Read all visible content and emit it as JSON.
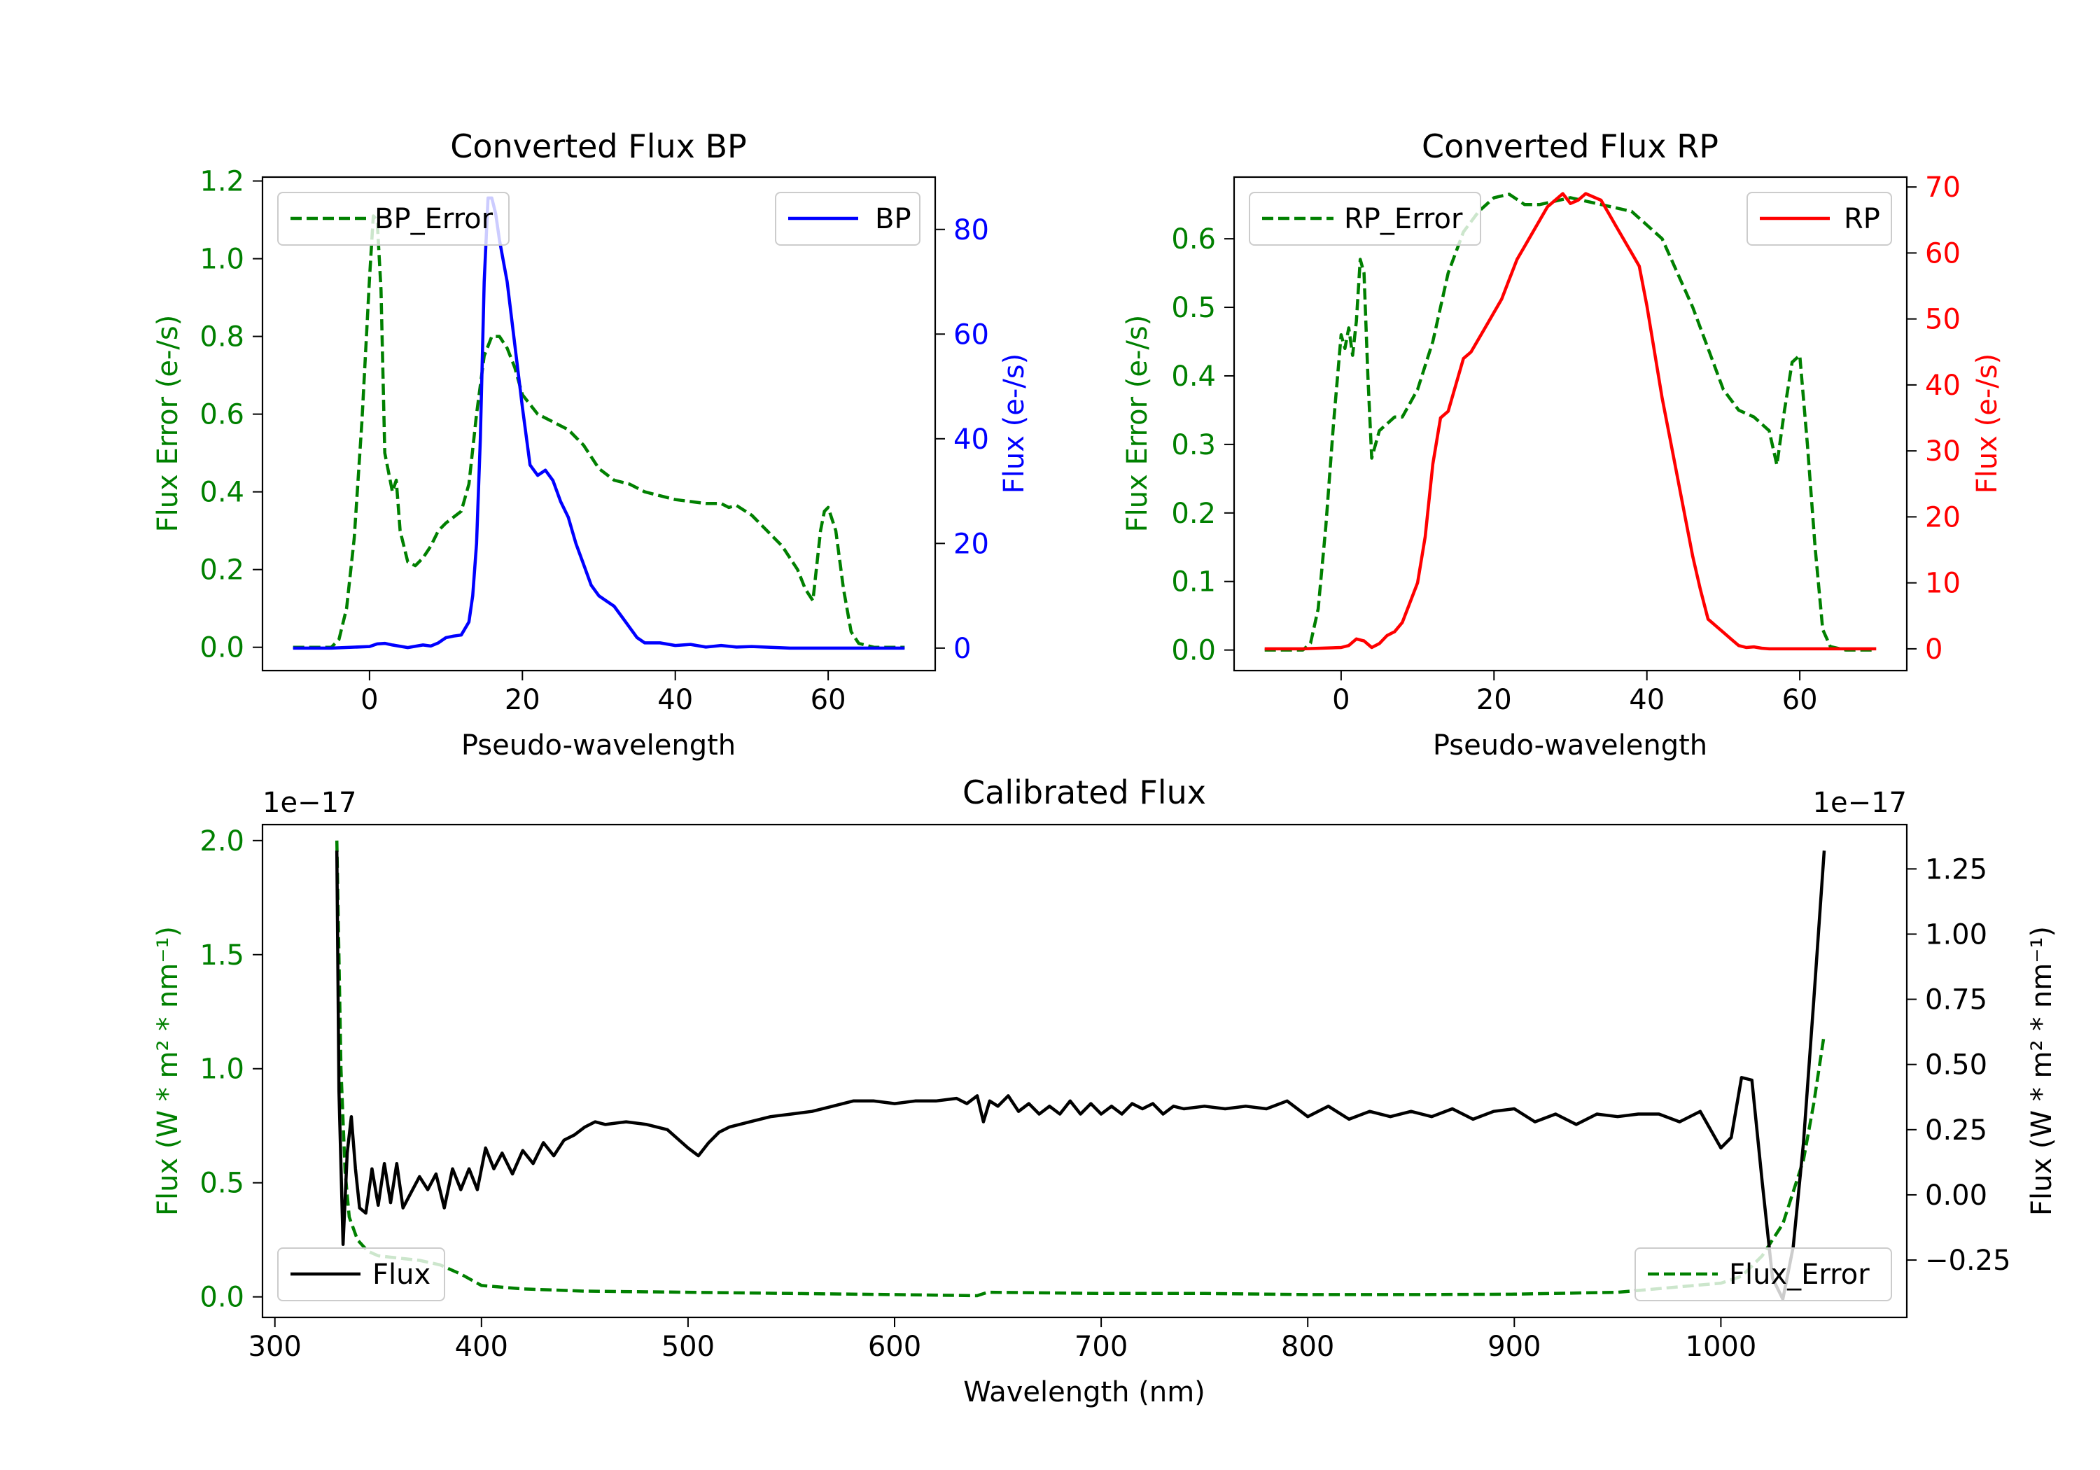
{
  "colors": {
    "green": "#008000",
    "blue": "#0000ff",
    "red": "#ff0000",
    "black": "#000000"
  },
  "chart_data": [
    {
      "type": "line",
      "title": "Converted Flux BP",
      "xlabel": "Pseudo-wavelength",
      "ylabel_left": "Flux Error (e-/s)",
      "ylabel_right": "Flux (e-/s)",
      "xlim": [
        -14,
        74
      ],
      "ylim_left": [
        -0.06,
        1.21
      ],
      "ylim_right": [
        -4.3,
        90
      ],
      "xticks": [
        0,
        20,
        40,
        60
      ],
      "yticks_left": [
        0.0,
        0.2,
        0.4,
        0.6,
        0.8,
        1.0,
        1.2
      ],
      "ytick_labels_left": [
        "0.0",
        "0.2",
        "0.4",
        "0.6",
        "0.8",
        "1.0",
        "1.2"
      ],
      "yticks_right": [
        0,
        20,
        40,
        60,
        80
      ],
      "ytick_labels_right": [
        "0",
        "20",
        "40",
        "60",
        "80"
      ],
      "legend_left": "BP_Error",
      "legend_right": "BP",
      "series": [
        {
          "name": "BP_Error",
          "axis": "left",
          "color": "#008000",
          "style": "dashed",
          "x": [
            -10,
            -5,
            -4,
            -3,
            -2,
            -1,
            0,
            0.5,
            1,
            1.5,
            2,
            3,
            3.5,
            4,
            5,
            6,
            7,
            8,
            9,
            10,
            12,
            13,
            14,
            15,
            16,
            17,
            18,
            19,
            20,
            22,
            24,
            26,
            28,
            30,
            32,
            34,
            36,
            38,
            40,
            42,
            44,
            46,
            47,
            48,
            50,
            52,
            54,
            56,
            57,
            58,
            59,
            59.5,
            60,
            61,
            62,
            63,
            64,
            66,
            70
          ],
          "y": [
            0.0,
            0.0,
            0.02,
            0.1,
            0.28,
            0.58,
            0.95,
            1.11,
            1.1,
            0.92,
            0.5,
            0.4,
            0.43,
            0.3,
            0.22,
            0.21,
            0.23,
            0.26,
            0.3,
            0.32,
            0.35,
            0.42,
            0.6,
            0.75,
            0.8,
            0.8,
            0.77,
            0.72,
            0.65,
            0.6,
            0.58,
            0.56,
            0.52,
            0.46,
            0.43,
            0.42,
            0.4,
            0.39,
            0.38,
            0.375,
            0.37,
            0.37,
            0.36,
            0.365,
            0.34,
            0.3,
            0.26,
            0.2,
            0.15,
            0.12,
            0.3,
            0.35,
            0.36,
            0.3,
            0.15,
            0.04,
            0.01,
            0.0,
            0.0
          ]
        },
        {
          "name": "BP",
          "axis": "right",
          "color": "#0000ff",
          "style": "solid",
          "x": [
            -10,
            -5,
            0,
            1,
            2,
            3,
            5,
            7,
            8,
            9,
            10,
            11,
            12,
            13,
            13.5,
            14,
            14.5,
            15,
            15.5,
            16,
            16.5,
            17,
            18,
            19,
            20,
            21,
            22,
            23,
            24,
            25,
            26,
            27,
            28,
            29,
            30,
            31,
            32,
            33,
            34,
            35,
            36,
            38,
            40,
            42,
            44,
            46,
            48,
            50,
            55,
            60,
            65,
            70
          ],
          "y": [
            0,
            0,
            0.3,
            0.8,
            0.9,
            0.6,
            0.1,
            0.6,
            0.4,
            1.0,
            2.0,
            2.3,
            2.5,
            5,
            10,
            20,
            40,
            70,
            86,
            86,
            83,
            78,
            70,
            58,
            46,
            35,
            33,
            34,
            32,
            28,
            25,
            20,
            16,
            12,
            10,
            9,
            8,
            6,
            4,
            2,
            1,
            1,
            0.5,
            0.7,
            0.2,
            0.5,
            0.2,
            0.3,
            0,
            0,
            0,
            0
          ]
        }
      ]
    },
    {
      "type": "line",
      "title": "Converted Flux RP",
      "xlabel": "Pseudo-wavelength",
      "ylabel_left": "Flux Error (e-/s)",
      "ylabel_right": "Flux (e-/s)",
      "xlim": [
        -14,
        74
      ],
      "ylim_left": [
        -0.03,
        0.69
      ],
      "ylim_right": [
        -3.3,
        71.5
      ],
      "xticks": [
        0,
        20,
        40,
        60
      ],
      "yticks_left": [
        0.0,
        0.1,
        0.2,
        0.3,
        0.4,
        0.5,
        0.6
      ],
      "ytick_labels_left": [
        "0.0",
        "0.1",
        "0.2",
        "0.3",
        "0.4",
        "0.5",
        "0.6"
      ],
      "yticks_right": [
        0,
        10,
        20,
        30,
        40,
        50,
        60,
        70
      ],
      "ytick_labels_right": [
        "0",
        "10",
        "20",
        "30",
        "40",
        "50",
        "60",
        "70"
      ],
      "legend_left": "RP_Error",
      "legend_right": "RP",
      "series": [
        {
          "name": "RP_Error",
          "axis": "left",
          "color": "#008000",
          "style": "dashed",
          "x": [
            -10,
            -5,
            -4,
            -3,
            -2,
            -1,
            0,
            0.5,
            1,
            1.5,
            2,
            2.5,
            3,
            3.5,
            4,
            5,
            6,
            7,
            8,
            9,
            10,
            12,
            14,
            16,
            18,
            20,
            22,
            24,
            26,
            28,
            30,
            32,
            34,
            36,
            38,
            40,
            42,
            44,
            46,
            48,
            50,
            52,
            54,
            55,
            56,
            57,
            58,
            59,
            60,
            61,
            62,
            63,
            64,
            66,
            70
          ],
          "y": [
            0.0,
            0.0,
            0.01,
            0.06,
            0.18,
            0.33,
            0.46,
            0.44,
            0.47,
            0.43,
            0.48,
            0.57,
            0.55,
            0.4,
            0.28,
            0.32,
            0.33,
            0.34,
            0.34,
            0.36,
            0.38,
            0.45,
            0.55,
            0.61,
            0.64,
            0.66,
            0.665,
            0.65,
            0.65,
            0.655,
            0.66,
            0.655,
            0.65,
            0.645,
            0.64,
            0.62,
            0.6,
            0.55,
            0.5,
            0.44,
            0.38,
            0.35,
            0.34,
            0.33,
            0.32,
            0.27,
            0.35,
            0.42,
            0.43,
            0.3,
            0.15,
            0.03,
            0.005,
            0.0,
            0.0
          ]
        },
        {
          "name": "RP",
          "axis": "right",
          "color": "#ff0000",
          "style": "solid",
          "x": [
            -10,
            -5,
            0,
            1,
            2,
            3,
            4,
            5,
            6,
            7,
            8,
            9,
            10,
            11,
            12,
            13,
            14,
            15,
            16,
            17,
            18,
            19,
            20,
            21,
            22,
            23,
            24,
            25,
            26,
            27,
            28,
            29,
            30,
            31,
            32,
            33,
            34,
            35,
            36,
            37,
            38,
            39,
            40,
            41,
            42,
            43,
            44,
            45,
            46,
            47,
            48,
            49,
            50,
            51,
            52,
            53,
            54,
            55,
            56,
            58,
            60,
            65,
            70
          ],
          "y": [
            0,
            0,
            0.2,
            0.5,
            1.5,
            1.2,
            0.2,
            0.8,
            2,
            2.6,
            4,
            7,
            10,
            17,
            28,
            35,
            36,
            40,
            44,
            45,
            47,
            49,
            51,
            53,
            56,
            59,
            61,
            63,
            65,
            67,
            68,
            69,
            67.5,
            68,
            69,
            68.5,
            68,
            66,
            64,
            62,
            60,
            58,
            52,
            45,
            38,
            32,
            26,
            20,
            14,
            9,
            4.5,
            3.5,
            2.5,
            1.5,
            0.5,
            0.2,
            0.3,
            0.1,
            0,
            0,
            0,
            0,
            0
          ]
        }
      ]
    },
    {
      "type": "line",
      "title": "Calibrated Flux",
      "xlabel": "Wavelength (nm)",
      "ylabel_left": "Flux (W * m² * nm⁻¹)",
      "ylabel_right": "Flux (W * m² * nm⁻¹)",
      "offset_left": "1e−17",
      "offset_right": "1e−17",
      "xlim": [
        294,
        1090
      ],
      "ylim_left": [
        -0.09,
        2.07
      ],
      "ylim_right": [
        -0.47,
        1.42
      ],
      "xticks": [
        300,
        400,
        500,
        600,
        700,
        800,
        900,
        1000
      ],
      "yticks_left": [
        0.0,
        0.5,
        1.0,
        1.5,
        2.0
      ],
      "ytick_labels_left": [
        "0.0",
        "0.5",
        "1.0",
        "1.5",
        "2.0"
      ],
      "yticks_right": [
        -0.25,
        0.0,
        0.25,
        0.5,
        0.75,
        1.0,
        1.25
      ],
      "ytick_labels_right": [
        "−0.25",
        "0.00",
        "0.25",
        "0.50",
        "0.75",
        "1.00",
        "1.25"
      ],
      "legend_left": "Flux",
      "legend_right": "Flux_Error",
      "series": [
        {
          "name": "Flux_Error",
          "axis": "left",
          "color": "#008000",
          "style": "dashed",
          "x": [
            330,
            332,
            334,
            336,
            340,
            345,
            350,
            360,
            370,
            380,
            390,
            400,
            420,
            450,
            500,
            550,
            600,
            640,
            645,
            700,
            750,
            800,
            850,
            900,
            950,
            1000,
            1010,
            1020,
            1030,
            1040,
            1045,
            1050
          ],
          "y": [
            2.0,
            1.0,
            0.55,
            0.35,
            0.25,
            0.2,
            0.18,
            0.17,
            0.16,
            0.14,
            0.1,
            0.05,
            0.035,
            0.025,
            0.02,
            0.015,
            0.01,
            0.005,
            0.02,
            0.015,
            0.015,
            0.01,
            0.01,
            0.012,
            0.02,
            0.06,
            0.09,
            0.18,
            0.32,
            0.6,
            0.85,
            1.15
          ]
        },
        {
          "name": "Flux",
          "axis": "right",
          "color": "#000000",
          "style": "solid",
          "x": [
            330,
            331,
            333,
            335,
            337,
            339,
            341,
            344,
            347,
            350,
            353,
            356,
            359,
            362,
            366,
            370,
            374,
            378,
            382,
            386,
            390,
            394,
            398,
            402,
            406,
            410,
            415,
            420,
            425,
            430,
            435,
            440,
            445,
            450,
            455,
            460,
            470,
            480,
            490,
            500,
            505,
            510,
            515,
            520,
            530,
            540,
            550,
            560,
            570,
            580,
            590,
            600,
            610,
            620,
            630,
            635,
            640,
            643,
            646,
            650,
            655,
            660,
            665,
            670,
            675,
            680,
            685,
            690,
            695,
            700,
            705,
            710,
            715,
            720,
            725,
            730,
            735,
            740,
            750,
            760,
            770,
            780,
            790,
            800,
            810,
            820,
            830,
            840,
            850,
            860,
            870,
            880,
            890,
            900,
            910,
            920,
            930,
            940,
            950,
            960,
            970,
            980,
            990,
            1000,
            1005,
            1010,
            1015,
            1020,
            1025,
            1030,
            1035,
            1040,
            1045,
            1050
          ],
          "y": [
            1.32,
            0.4,
            -0.19,
            0.16,
            0.3,
            0.1,
            -0.05,
            -0.07,
            0.1,
            -0.04,
            0.12,
            -0.03,
            0.12,
            -0.05,
            0.01,
            0.07,
            0.02,
            0.08,
            -0.05,
            0.1,
            0.02,
            0.1,
            0.02,
            0.18,
            0.1,
            0.16,
            0.08,
            0.17,
            0.12,
            0.2,
            0.15,
            0.21,
            0.23,
            0.26,
            0.28,
            0.27,
            0.28,
            0.27,
            0.25,
            0.18,
            0.15,
            0.2,
            0.24,
            0.26,
            0.28,
            0.3,
            0.31,
            0.32,
            0.34,
            0.36,
            0.36,
            0.35,
            0.36,
            0.36,
            0.37,
            0.35,
            0.38,
            0.28,
            0.36,
            0.34,
            0.38,
            0.32,
            0.35,
            0.31,
            0.34,
            0.31,
            0.36,
            0.31,
            0.35,
            0.31,
            0.34,
            0.31,
            0.35,
            0.33,
            0.35,
            0.31,
            0.34,
            0.33,
            0.34,
            0.33,
            0.34,
            0.33,
            0.36,
            0.3,
            0.34,
            0.29,
            0.32,
            0.3,
            0.32,
            0.3,
            0.33,
            0.29,
            0.32,
            0.33,
            0.28,
            0.31,
            0.27,
            0.31,
            0.3,
            0.31,
            0.31,
            0.28,
            0.32,
            0.18,
            0.22,
            0.45,
            0.44,
            0.05,
            -0.32,
            -0.4,
            -0.2,
            0.2,
            0.75,
            1.32
          ]
        }
      ]
    }
  ]
}
